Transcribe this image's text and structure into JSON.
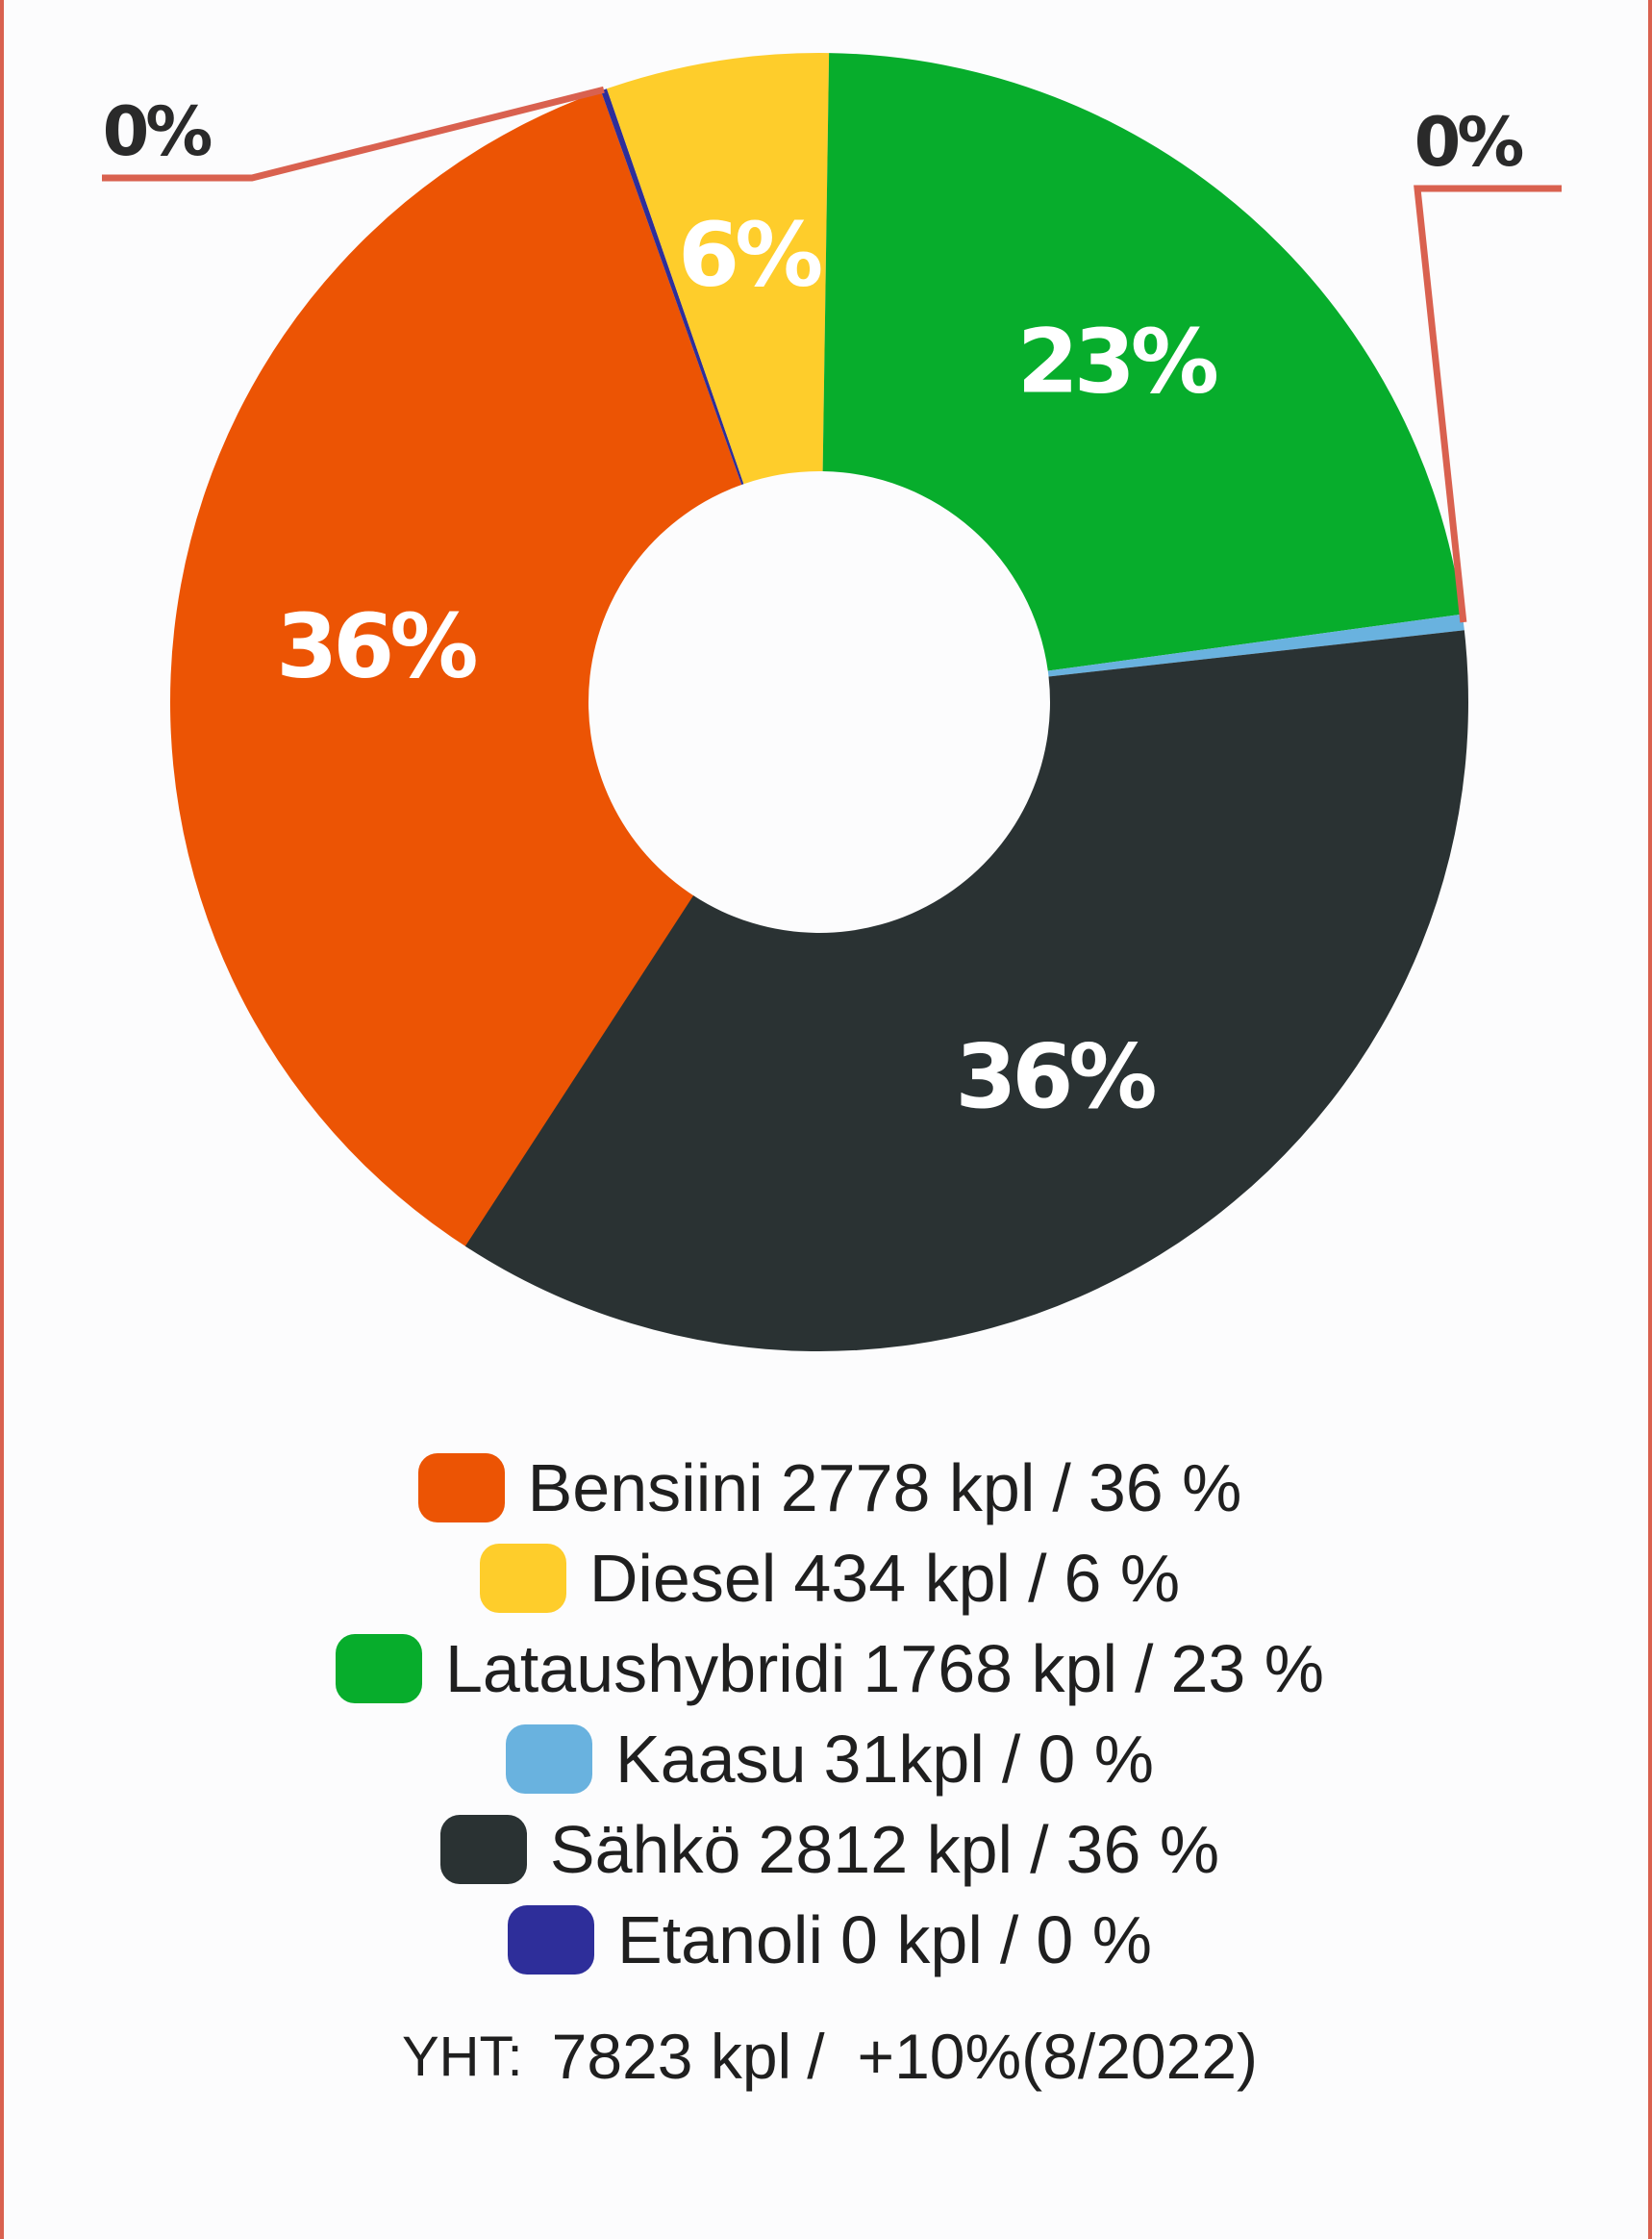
{
  "chart_data": {
    "type": "pie",
    "donut": true,
    "slices": [
      {
        "name": "Bensiini",
        "count": 2778,
        "unit": "kpl",
        "percent": 36,
        "label": "36%",
        "color": "#ec5404"
      },
      {
        "name": "Etanoli",
        "count": 0,
        "unit": "kpl",
        "percent": 0,
        "label": "0%",
        "color": "#2e2e9a"
      },
      {
        "name": "Diesel",
        "count": 434,
        "unit": "kpl",
        "percent": 6,
        "label": "6%",
        "color": "#fecd2b"
      },
      {
        "name": "Lataushybridi",
        "count": 1768,
        "unit": "kpl",
        "percent": 23,
        "label": "23%",
        "color": "#07ad2c"
      },
      {
        "name": "Kaasu",
        "count": 31,
        "unit": "kpl",
        "percent": 0,
        "label": "0%",
        "color": "#69b2df"
      },
      {
        "name": "Sähkö",
        "count": 2812,
        "unit": "kpl",
        "percent": 36,
        "label": "36%",
        "color": "#2a3233"
      }
    ],
    "callout_color": "#d9614f"
  },
  "legend": [
    {
      "name": "Bensiini",
      "count": "2778 kpl",
      "sep": "/",
      "pct": "36 %",
      "color": "#ec5404"
    },
    {
      "name": "Diesel",
      "count": "434 kpl",
      "sep": "/",
      "pct": "6 %",
      "color": "#fecd2b"
    },
    {
      "name": "Lataushybridi",
      "count": "1768 kpl",
      "sep": "/",
      "pct": "23 %",
      "color": "#07ad2c"
    },
    {
      "name": "Kaasu",
      "count": "31kpl",
      "sep": "/",
      "pct": "0 %",
      "color": "#69b2df"
    },
    {
      "name": "Sähkö",
      "count": "2812 kpl",
      "sep": "/",
      "pct": "36 %",
      "color": "#2a3233"
    },
    {
      "name": "Etanoli",
      "count": "0 kpl",
      "sep": "/",
      "pct": "0 %",
      "color": "#2e2e9a"
    }
  ],
  "total": {
    "label": "YHT:",
    "value": "7823 kpl",
    "sep": "/",
    "change": "+10%(8/2022)"
  }
}
